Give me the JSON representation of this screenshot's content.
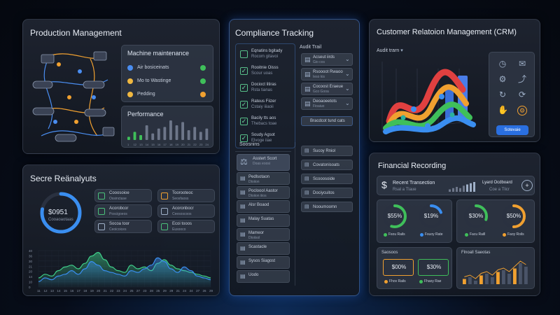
{
  "production": {
    "title": "Production Management",
    "maintenance": {
      "title": "Machine maintenance",
      "items": [
        {
          "label": "Air bosiceinats",
          "color": "#4a8df0",
          "status": "#3fbf5a"
        },
        {
          "label": "Mo to Wastinge",
          "color": "#f0b840",
          "status": "#3fbf5a"
        },
        {
          "label": "Pedding",
          "color": "#f0b840",
          "status": "#f0a030"
        }
      ]
    },
    "performance": {
      "title": "Performance",
      "values": [
        2,
        5,
        3,
        9,
        4,
        7,
        8,
        12,
        9,
        11,
        6,
        8,
        5,
        7
      ],
      "ticks": [
        "1",
        "12",
        "13",
        "14",
        "15",
        "16",
        "17",
        "18",
        "19",
        "20",
        "21",
        "22",
        "23",
        "24"
      ]
    }
  },
  "compliance": {
    "title": "Compliance Tracking",
    "checklist": [
      {
        "label": "Eqnatins bgitady",
        "sub": "Rocom gitavoi"
      },
      {
        "label": "Rooitnie Oisss",
        "sub": "Scour uoas"
      },
      {
        "label": "Docioct litiras",
        "sub": "Rsta tianas"
      },
      {
        "label": "Rateus Fiizer",
        "sub": "Cstaiy iiiaoii"
      },
      {
        "label": "Bacily tts aos",
        "sub": "Thebacs toae"
      },
      {
        "label": "Soudy Agsot",
        "sub": "Elvoge iiae"
      }
    ],
    "audit_trail": {
      "title": "Audit Trail",
      "items": [
        {
          "label": "Acseut iirds",
          "sub": "Gio cos"
        },
        {
          "label": "Rsoooot Rwaoo",
          "sub": "Ieso kis"
        },
        {
          "label": "Cocoost Eraeue",
          "sub": "Gco Gooa"
        },
        {
          "label": "Deoaoeetots",
          "sub": "Fioaiuo"
        }
      ],
      "button": "Bracdcot tund cats"
    },
    "sections_title": "Soosnins",
    "sections": [
      {
        "label": "Asstert Scort",
        "sub": "Doas eoosi",
        "icon": "scale"
      },
      {
        "label": "Pedlsotaon",
        "sub": "Dtoiion"
      },
      {
        "label": "Pocloool Aastor",
        "sub": "Dtoiion iiios"
      },
      {
        "label": "Alsr Boaod",
        "sub": ""
      },
      {
        "label": "Malay Suatas",
        "sub": ""
      },
      {
        "label": "Mameor",
        "sub": "Dtoiisol"
      },
      {
        "label": "Scastacle",
        "sub": ""
      },
      {
        "label": "Sysos Siagost",
        "sub": ""
      },
      {
        "label": "Uodo",
        "sub": ""
      }
    ],
    "right_list": [
      "Sucoy Rniol",
      "Covatonisoats",
      "Scooosoide",
      "Dociycuitos",
      "Nooumoomn"
    ]
  },
  "crm": {
    "title": "Customer Relatoion Management (CRM)",
    "dropdown": "Audit trarn",
    "button": "Sotevaie",
    "icons": [
      "clock-icon",
      "chat-icon",
      "gear-icon",
      "share-icon",
      "refresh-icon",
      "sync-icon",
      "handshake-icon",
      "settings-icon"
    ]
  },
  "analytics": {
    "title": "Secre Reänalyuts",
    "gauge": {
      "value": "$0951",
      "label": "Cooaoaotaas",
      "percent": 0.78
    },
    "cards": [
      {
        "title": "Cooosoioe",
        "sub": "Ossinctase",
        "color": "#4ac07a"
      },
      {
        "title": "Toorooteoc",
        "sub": "Seosfaoss",
        "color": "#f0a030"
      },
      {
        "title": "Acorobcor",
        "sub": "Poscigoeos",
        "color": "#4ac07a"
      },
      {
        "title": "Acoronbocr",
        "sub": "Ceesoscoos",
        "color": "#9fb0c8"
      },
      {
        "title": "Socoa toor",
        "sub": "Ceoicoices",
        "color": "#9fb0c8"
      },
      {
        "title": "Ecoi tooos",
        "sub": "Eusooco",
        "color": "#4ac07a"
      }
    ],
    "chart_data": {
      "type": "area",
      "y_ticks": [
        "40",
        "36",
        "30",
        "21",
        "20",
        "14",
        "10",
        "0"
      ],
      "x_ticks": [
        "11",
        "12",
        "13",
        "14",
        "15",
        "16",
        "17",
        "18",
        "19",
        "20",
        "21",
        "22",
        "23",
        "24",
        "25",
        "27",
        "23",
        "28",
        "25",
        "29",
        "29",
        "21",
        "24",
        "24",
        "27",
        "26",
        "29"
      ],
      "series": [
        {
          "color": "#3fd08a",
          "values": [
            10,
            14,
            12,
            18,
            22,
            24,
            20,
            26,
            34,
            38,
            30,
            22,
            18,
            16,
            24,
            20,
            22,
            18,
            26,
            30,
            24,
            20,
            18,
            16,
            14,
            12,
            10
          ]
        },
        {
          "color": "#3a8ef0",
          "values": [
            6,
            10,
            8,
            12,
            14,
            18,
            14,
            20,
            28,
            24,
            18,
            16,
            14,
            12,
            18,
            16,
            20,
            24,
            32,
            28,
            20,
            16,
            22,
            18,
            12,
            10,
            8
          ]
        }
      ]
    }
  },
  "finance": {
    "title": "Financial Recording",
    "recent": {
      "title": "Recent Transection",
      "sub": "Rsal a Tlaue",
      "bars": [
        2,
        3,
        4,
        3,
        5,
        6,
        7,
        8
      ]
    },
    "lyoad": {
      "title": "Lyard Ocdboard",
      "sub": "Coe a Tlicr"
    },
    "rings": [
      {
        "value": "$55%",
        "label": "Fsou Rails",
        "color": "#3fbf5a",
        "pct": 0.55,
        "dot": "#3fbf5a"
      },
      {
        "value": "$19%",
        "label": "Fsuoy Rate",
        "color": "#3a8ef0",
        "pct": 0.19,
        "dot": "#3a8ef0"
      },
      {
        "value": "$30%",
        "label": "Facu Raill",
        "color": "#3fbf5a",
        "pct": 0.3,
        "dot": "#3fbf5a"
      },
      {
        "value": "$50%",
        "label": "Faoy Roils",
        "color": "#f0a030",
        "pct": 0.5,
        "dot": "#f0a030"
      }
    ],
    "summary": {
      "title": "Saosoos",
      "boxes": [
        {
          "value": "$00%",
          "label": "Fhov Rails",
          "color": "#f0a030"
        },
        {
          "value": "$30%",
          "label": "Fhaoy Rae",
          "color": "#3fbf5a"
        }
      ]
    },
    "financial_chart": {
      "title": "Flnoall Saeotas",
      "values": [
        3,
        4,
        2,
        5,
        6,
        4,
        7,
        8,
        6,
        9,
        12,
        10
      ]
    }
  }
}
